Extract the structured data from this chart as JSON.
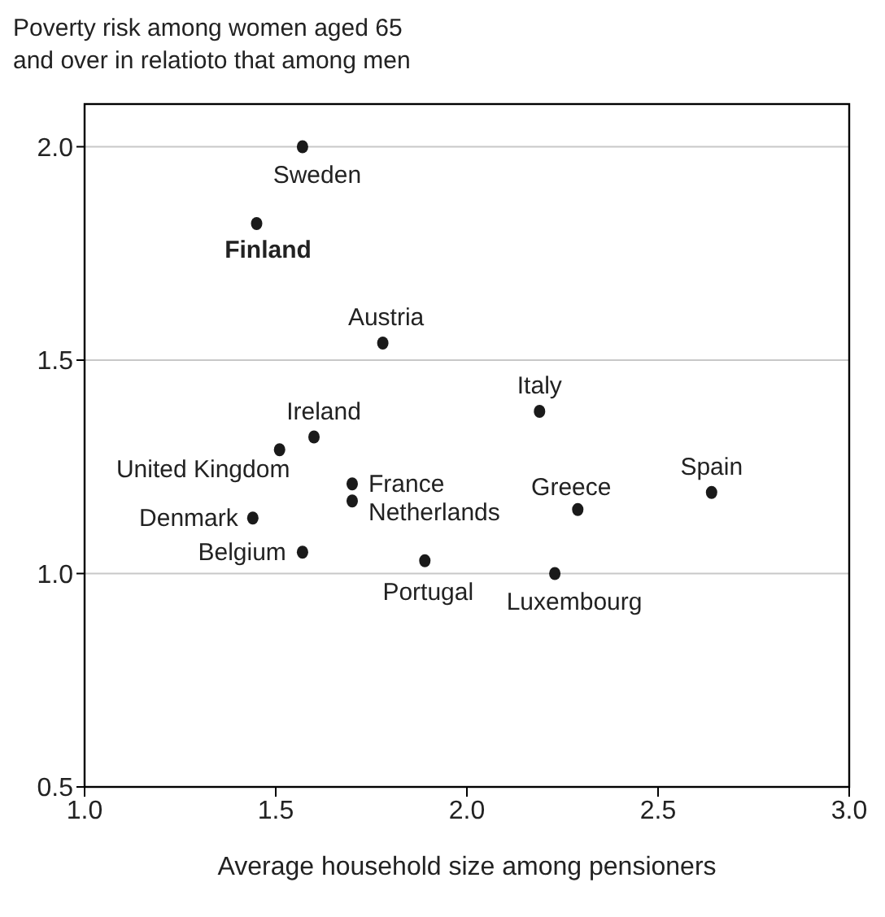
{
  "chart_data": {
    "type": "scatter",
    "title": "Poverty risk among women aged 65\nand over in relatioto that among men",
    "xlabel": "Average household size among pensioners",
    "x": [
      1.57,
      1.45,
      1.78,
      2.19,
      1.6,
      1.51,
      1.7,
      1.7,
      1.44,
      2.29,
      2.64,
      1.57,
      1.89,
      2.23
    ],
    "values": [
      2.0,
      1.82,
      1.54,
      1.38,
      1.32,
      1.29,
      1.21,
      1.17,
      1.13,
      1.15,
      1.19,
      1.05,
      1.03,
      1.0
    ],
    "color": "#1a1a1a",
    "marker": "circle",
    "annotations": [
      {
        "text": "Sweden",
        "x": 1.57,
        "y": 2.0
      },
      {
        "text": "Finland",
        "x": 1.45,
        "y": 1.82
      },
      {
        "text": "Austria",
        "x": 1.78,
        "y": 1.54
      },
      {
        "text": "Italy",
        "x": 2.19,
        "y": 1.38
      },
      {
        "text": "Ireland",
        "x": 1.6,
        "y": 1.32
      },
      {
        "text": "United Kingdom",
        "x": 1.51,
        "y": 1.29
      },
      {
        "text": "France",
        "x": 1.7,
        "y": 1.21
      },
      {
        "text": "Netherlands",
        "x": 1.7,
        "y": 1.17
      },
      {
        "text": "Denmark",
        "x": 1.44,
        "y": 1.13
      },
      {
        "text": "Greece",
        "x": 2.29,
        "y": 1.15
      },
      {
        "text": "Spain",
        "x": 2.64,
        "y": 1.19
      },
      {
        "text": "Belgium",
        "x": 1.57,
        "y": 1.05
      },
      {
        "text": "Portugal",
        "x": 1.89,
        "y": 1.03
      },
      {
        "text": "Luxembourg",
        "x": 2.23,
        "y": 1.0
      }
    ],
    "xlim": [
      1.0,
      3.0
    ],
    "xticks": [
      {
        "value": 1,
        "label": "1.0"
      },
      1.5,
      {
        "value": 2,
        "label": "2.0"
      },
      2.5,
      {
        "value": 3,
        "label": "3.0"
      }
    ],
    "ylim": [
      0.5,
      2.1
    ],
    "yticks": [
      0.5,
      {
        "value": 1,
        "label": "1.0"
      },
      1.5,
      {
        "value": 2,
        "label": "2.0"
      }
    ],
    "grid": "y"
  }
}
